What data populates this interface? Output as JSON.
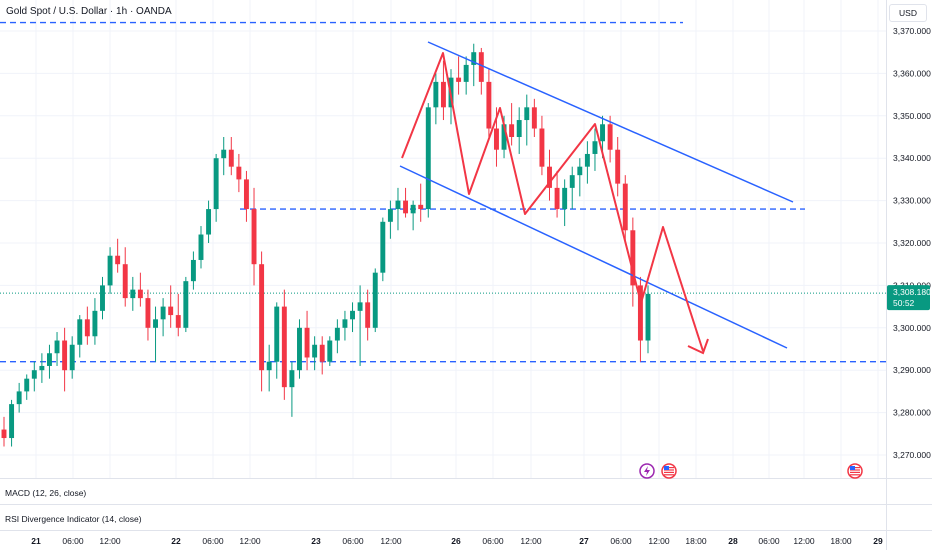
{
  "title": "Gold Spot / U.S. Dollar · 1h · OANDA",
  "currency": "USD",
  "current_price": "3,308.180",
  "countdown": "50:52",
  "indicators": {
    "macd": "MACD (12, 26, close)",
    "rsi": "RSI Divergence Indicator (14, close)"
  },
  "colors": {
    "up": "#089981",
    "down": "#f23645",
    "annotation_line": "#2962ff",
    "arrow": "#f23645",
    "price_tag": "#089981",
    "axis_text": "#131722",
    "grid": "#f0f3fa"
  },
  "icons": [
    "lightning-event-icon",
    "us-flag-event-icon",
    "us-flag-event-icon"
  ],
  "chart_data": {
    "type": "candlestick",
    "ylim": [
      3265,
      3375
    ],
    "yticks": [
      "3,370.000",
      "3,360.000",
      "3,350.000",
      "3,340.000",
      "3,330.000",
      "3,320.000",
      "3,310.000",
      "3,300.000",
      "3,290.000",
      "3,280.000",
      "3,270.000"
    ],
    "yticks_values": [
      3370,
      3360,
      3350,
      3340,
      3330,
      3320,
      3310,
      3300,
      3290,
      3280,
      3270
    ],
    "xticks": [
      "21",
      "06:00",
      "12:00",
      "22",
      "06:00",
      "12:00",
      "23",
      "06:00",
      "12:00",
      "26",
      "06:00",
      "12:00",
      "27",
      "06:00",
      "12:00",
      "18:00",
      "28",
      "06:00",
      "12:00",
      "18:00",
      "29"
    ],
    "xticks_bold": [
      true,
      false,
      false,
      true,
      false,
      false,
      true,
      false,
      false,
      true,
      false,
      false,
      true,
      false,
      false,
      false,
      true,
      false,
      false,
      false,
      true
    ],
    "candles": [
      [
        3276,
        3279,
        3272,
        3274
      ],
      [
        3274,
        3283,
        3272,
        3282
      ],
      [
        3282,
        3287,
        3280,
        3285
      ],
      [
        3285,
        3289,
        3283,
        3288
      ],
      [
        3288,
        3292,
        3285,
        3290
      ],
      [
        3290,
        3294,
        3287,
        3291
      ],
      [
        3291,
        3296,
        3288,
        3294
      ],
      [
        3294,
        3299,
        3291,
        3297
      ],
      [
        3297,
        3300,
        3285,
        3290
      ],
      [
        3290,
        3298,
        3288,
        3296
      ],
      [
        3296,
        3303,
        3293,
        3302
      ],
      [
        3302,
        3305,
        3296,
        3298
      ],
      [
        3298,
        3307,
        3296,
        3304
      ],
      [
        3304,
        3312,
        3302,
        3310
      ],
      [
        3310,
        3319,
        3308,
        3317
      ],
      [
        3317,
        3321,
        3313,
        3315
      ],
      [
        3315,
        3319,
        3305,
        3307
      ],
      [
        3307,
        3312,
        3304,
        3309
      ],
      [
        3309,
        3313,
        3305,
        3307
      ],
      [
        3307,
        3309,
        3297,
        3300
      ],
      [
        3300,
        3305,
        3292,
        3302
      ],
      [
        3302,
        3307,
        3298,
        3305
      ],
      [
        3305,
        3310,
        3300,
        3303
      ],
      [
        3303,
        3308,
        3298,
        3300
      ],
      [
        3300,
        3312,
        3299,
        3311
      ],
      [
        3311,
        3318,
        3309,
        3316
      ],
      [
        3316,
        3324,
        3314,
        3322
      ],
      [
        3322,
        3330,
        3320,
        3328
      ],
      [
        3328,
        3341,
        3325,
        3340
      ],
      [
        3340,
        3345,
        3336,
        3342
      ],
      [
        3342,
        3345,
        3336,
        3338
      ],
      [
        3338,
        3341,
        3332,
        3335
      ],
      [
        3335,
        3337,
        3325,
        3328
      ],
      [
        3328,
        3333,
        3310,
        3315
      ],
      [
        3315,
        3318,
        3285,
        3290
      ],
      [
        3290,
        3296,
        3285,
        3292
      ],
      [
        3292,
        3306,
        3288,
        3305
      ],
      [
        3305,
        3309,
        3283,
        3286
      ],
      [
        3286,
        3292,
        3279,
        3290
      ],
      [
        3290,
        3302,
        3288,
        3300
      ],
      [
        3300,
        3304,
        3290,
        3293
      ],
      [
        3293,
        3298,
        3290,
        3296
      ],
      [
        3296,
        3298,
        3289,
        3292
      ],
      [
        3292,
        3298,
        3291,
        3297
      ],
      [
        3297,
        3302,
        3294,
        3300
      ],
      [
        3300,
        3304,
        3297,
        3302
      ],
      [
        3302,
        3306,
        3299,
        3304
      ],
      [
        3304,
        3310,
        3291,
        3306
      ],
      [
        3306,
        3309,
        3297,
        3300
      ],
      [
        3300,
        3314,
        3299,
        3313
      ],
      [
        3313,
        3326,
        3311,
        3325
      ],
      [
        3325,
        3330,
        3321,
        3328
      ],
      [
        3328,
        3333,
        3323,
        3330
      ],
      [
        3330,
        3333,
        3326,
        3327
      ],
      [
        3327,
        3330,
        3323,
        3329
      ],
      [
        3329,
        3334,
        3325,
        3328
      ],
      [
        3328,
        3353,
        3326,
        3352
      ],
      [
        3352,
        3360,
        3348,
        3358
      ],
      [
        3358,
        3363,
        3349,
        3352
      ],
      [
        3352,
        3361,
        3348,
        3359
      ],
      [
        3359,
        3364,
        3355,
        3358
      ],
      [
        3358,
        3364,
        3355,
        3362
      ],
      [
        3362,
        3367,
        3357,
        3365
      ],
      [
        3365,
        3366,
        3355,
        3358
      ],
      [
        3358,
        3361,
        3345,
        3347
      ],
      [
        3347,
        3352,
        3338,
        3342
      ],
      [
        3342,
        3350,
        3340,
        3348
      ],
      [
        3348,
        3353,
        3343,
        3345
      ],
      [
        3345,
        3352,
        3341,
        3349
      ],
      [
        3349,
        3355,
        3343,
        3352
      ],
      [
        3352,
        3354,
        3345,
        3347
      ],
      [
        3347,
        3350,
        3336,
        3338
      ],
      [
        3338,
        3342,
        3330,
        3333
      ],
      [
        3333,
        3337,
        3326,
        3328
      ],
      [
        3328,
        3335,
        3324,
        3333
      ],
      [
        3333,
        3338,
        3328,
        3336
      ],
      [
        3336,
        3340,
        3331,
        3338
      ],
      [
        3338,
        3344,
        3334,
        3341
      ],
      [
        3341,
        3347,
        3337,
        3344
      ],
      [
        3344,
        3350,
        3340,
        3348
      ],
      [
        3348,
        3350,
        3339,
        3342
      ],
      [
        3342,
        3345,
        3331,
        3334
      ],
      [
        3334,
        3336,
        3320,
        3323
      ],
      [
        3323,
        3326,
        3305,
        3310
      ],
      [
        3310,
        3312,
        3292,
        3297
      ],
      [
        3297,
        3310,
        3294,
        3308
      ]
    ],
    "levels": [
      3372,
      3328,
      3292
    ],
    "current_price_value": 3308.18
  }
}
